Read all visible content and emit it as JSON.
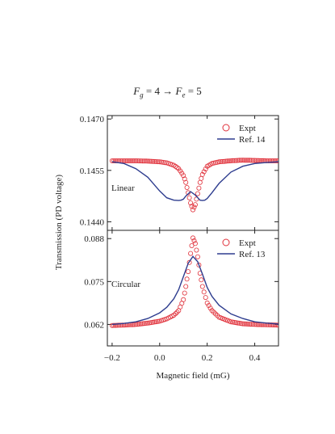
{
  "figure": {
    "title_parts": {
      "F1": "F",
      "sub1": "g",
      "mid": " = 4  →  ",
      "F2": "F",
      "sub2": "e",
      "end": " = 5"
    },
    "ylabel": "Transmission (PD voltage)",
    "xlabel": "Magnetic field (mG)"
  },
  "chart_data": [
    {
      "type": "scatter",
      "panel_label": "Linear",
      "xlim": [
        -0.22,
        0.5
      ],
      "ylim": [
        0.14375,
        0.1471
      ],
      "yticks": [
        "0.1470",
        "0.1455",
        "0.1440"
      ],
      "ytick_values": [
        0.147,
        0.1455,
        0.144
      ],
      "xticks": [
        "−0.2",
        "0.0",
        "0.2",
        "0.4"
      ],
      "xtick_values": [
        -0.2,
        0.0,
        0.2,
        0.4
      ],
      "series": [
        {
          "name": "Expt",
          "color": "#e0303a",
          "marker": "open-circle",
          "x": [
            -0.2,
            -0.15,
            -0.1,
            -0.05,
            0.0,
            0.03,
            0.06,
            0.08,
            0.1,
            0.11,
            0.12,
            0.13,
            0.14,
            0.15,
            0.16,
            0.17,
            0.18,
            0.2,
            0.22,
            0.25,
            0.3,
            0.35,
            0.4,
            0.45,
            0.5
          ],
          "y": [
            0.14578,
            0.14578,
            0.14578,
            0.14577,
            0.14575,
            0.14572,
            0.14565,
            0.14555,
            0.14535,
            0.14515,
            0.14485,
            0.14455,
            0.14435,
            0.1445,
            0.14482,
            0.14515,
            0.14538,
            0.14562,
            0.1457,
            0.14575,
            0.14578,
            0.1458,
            0.14579,
            0.14578,
            0.14578
          ]
        },
        {
          "name": "Ref. 14",
          "color": "#2e3d8f",
          "marker": "line",
          "x": [
            -0.2,
            -0.15,
            -0.1,
            -0.05,
            0.0,
            0.03,
            0.06,
            0.08,
            0.09,
            0.1,
            0.11,
            0.13,
            0.15,
            0.17,
            0.18,
            0.19,
            0.2,
            0.22,
            0.25,
            0.3,
            0.35,
            0.4,
            0.45,
            0.5
          ],
          "y": [
            0.14575,
            0.1457,
            0.14555,
            0.1453,
            0.1449,
            0.1447,
            0.14463,
            0.14462,
            0.14463,
            0.14466,
            0.14475,
            0.14488,
            0.14478,
            0.14463,
            0.14462,
            0.14463,
            0.14468,
            0.14485,
            0.14512,
            0.14545,
            0.14562,
            0.1457,
            0.14573,
            0.14575
          ]
        }
      ]
    },
    {
      "type": "scatter",
      "panel_label": "Circular",
      "xlim": [
        -0.22,
        0.5
      ],
      "ylim": [
        0.0555,
        0.0905
      ],
      "yticks": [
        "0.088",
        "0.075",
        "0.062"
      ],
      "ytick_values": [
        0.088,
        0.075,
        0.062
      ],
      "xticks": [
        "−0.2",
        "0.0",
        "0.2",
        "0.4"
      ],
      "xtick_values": [
        -0.2,
        0.0,
        0.2,
        0.4
      ],
      "series": [
        {
          "name": "Expt",
          "color": "#e0303a",
          "marker": "open-circle",
          "x": [
            -0.2,
            -0.15,
            -0.1,
            -0.05,
            0.0,
            0.03,
            0.06,
            0.08,
            0.1,
            0.11,
            0.12,
            0.13,
            0.14,
            0.15,
            0.16,
            0.17,
            0.18,
            0.2,
            0.22,
            0.25,
            0.3,
            0.35,
            0.4,
            0.45,
            0.5
          ],
          "y": [
            0.0617,
            0.0618,
            0.062,
            0.0624,
            0.063,
            0.0637,
            0.0648,
            0.0662,
            0.0695,
            0.0735,
            0.078,
            0.0835,
            0.0882,
            0.0865,
            0.0825,
            0.0775,
            0.0735,
            0.0685,
            0.0662,
            0.0642,
            0.0628,
            0.0622,
            0.062,
            0.0619,
            0.0618
          ]
        },
        {
          "name": "Ref. 13",
          "color": "#2e3d8f",
          "marker": "line",
          "x": [
            -0.2,
            -0.15,
            -0.1,
            -0.05,
            0.0,
            0.03,
            0.06,
            0.08,
            0.1,
            0.12,
            0.14,
            0.16,
            0.18,
            0.2,
            0.22,
            0.25,
            0.3,
            0.35,
            0.4,
            0.45,
            0.5
          ],
          "y": [
            0.062,
            0.0623,
            0.0628,
            0.0638,
            0.0655,
            0.0672,
            0.0698,
            0.0725,
            0.0765,
            0.0805,
            0.0826,
            0.081,
            0.0772,
            0.0732,
            0.0705,
            0.0678,
            0.0652,
            0.0638,
            0.0628,
            0.0624,
            0.0621
          ]
        }
      ]
    }
  ]
}
